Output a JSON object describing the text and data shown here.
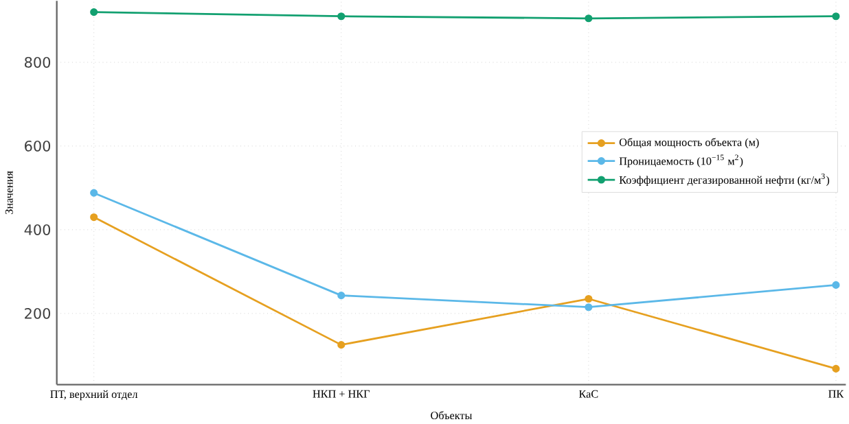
{
  "chart_data": {
    "type": "line",
    "xlabel": "Объекты",
    "ylabel": "Значения",
    "categories": [
      "ПТ, верхний отдел",
      "НКП  + НКГ",
      "КаС",
      "ПК"
    ],
    "series": [
      {
        "name": "Общая мощность объекта (м)",
        "color": "#e6a020",
        "values": [
          430,
          125,
          235,
          68
        ]
      },
      {
        "name": "Проницаемость (10$^{−15}$ м$^{2}$)",
        "color": "#5bb8e8",
        "values": [
          488,
          243,
          215,
          268
        ]
      },
      {
        "name": "Коэффициент дегазированной нефти (кг/м$^{3}$)",
        "color": "#12a070",
        "values": [
          920,
          910,
          905,
          910
        ]
      }
    ],
    "ylim": [
      30,
      947
    ],
    "yticks": [
      200,
      400,
      600,
      800
    ],
    "grid": true,
    "legend": "right",
    "marker": "circle",
    "line_style": "solid"
  }
}
